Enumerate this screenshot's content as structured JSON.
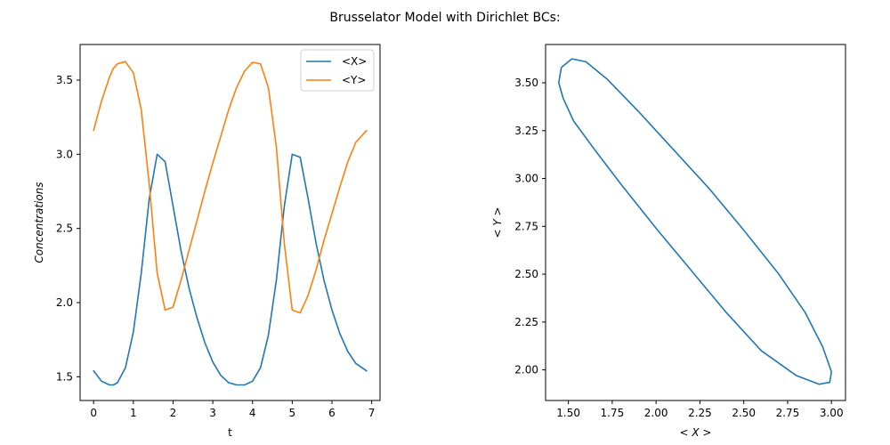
{
  "figure": {
    "suptitle": "Brusselator Model with Dirichlet BCs:"
  },
  "chart_data": [
    {
      "type": "line",
      "xlabel": "t",
      "ylabel": "Concentrations",
      "xlim": [
        -0.34,
        7.21
      ],
      "ylim": [
        1.34,
        3.74
      ],
      "xticks": [
        0,
        1,
        2,
        3,
        4,
        5,
        6,
        7
      ],
      "xtick_labels": [
        "0",
        "1",
        "2",
        "3",
        "4",
        "5",
        "6",
        "7"
      ],
      "yticks": [
        1.5,
        2.0,
        2.5,
        3.0,
        3.5
      ],
      "ytick_labels": [
        "1.5",
        "2.0",
        "2.5",
        "3.0",
        "3.5"
      ],
      "grid": false,
      "legend": "top-right",
      "colors": [
        "#1f77b4",
        "#ff7f0e"
      ],
      "x": [
        0.0,
        0.2,
        0.4,
        0.5,
        0.6,
        0.8,
        1.0,
        1.2,
        1.4,
        1.6,
        1.8,
        2.0,
        2.2,
        2.4,
        2.6,
        2.8,
        3.0,
        3.2,
        3.4,
        3.6,
        3.8,
        4.0,
        4.2,
        4.4,
        4.6,
        4.8,
        5.0,
        5.2,
        5.4,
        5.6,
        5.8,
        6.0,
        6.2,
        6.4,
        6.6,
        6.87
      ],
      "series": [
        {
          "name": "<X>",
          "values": [
            1.54,
            1.47,
            1.445,
            1.445,
            1.46,
            1.56,
            1.8,
            2.2,
            2.7,
            3.0,
            2.95,
            2.65,
            2.35,
            2.1,
            1.9,
            1.73,
            1.6,
            1.51,
            1.46,
            1.445,
            1.445,
            1.47,
            1.56,
            1.78,
            2.15,
            2.65,
            3.0,
            2.98,
            2.7,
            2.4,
            2.15,
            1.95,
            1.79,
            1.67,
            1.59,
            1.54
          ]
        },
        {
          "name": "<Y>",
          "values": [
            3.16,
            3.36,
            3.52,
            3.58,
            3.61,
            3.625,
            3.55,
            3.3,
            2.8,
            2.2,
            1.95,
            1.97,
            2.15,
            2.35,
            2.55,
            2.75,
            2.94,
            3.12,
            3.3,
            3.45,
            3.56,
            3.62,
            3.61,
            3.45,
            3.05,
            2.4,
            1.95,
            1.93,
            2.05,
            2.22,
            2.42,
            2.6,
            2.78,
            2.95,
            3.08,
            3.16
          ]
        }
      ]
    },
    {
      "type": "line",
      "xlabel": "< X >",
      "ylabel": "< Y >",
      "xlim": [
        1.37,
        3.08
      ],
      "ylim": [
        1.84,
        3.7
      ],
      "xticks": [
        1.5,
        1.75,
        2.0,
        2.25,
        2.5,
        2.75,
        3.0
      ],
      "xtick_labels": [
        "1.50",
        "1.75",
        "2.00",
        "2.25",
        "2.50",
        "2.75",
        "3.00"
      ],
      "yticks": [
        2.0,
        2.25,
        2.5,
        2.75,
        3.0,
        3.25,
        3.5
      ],
      "ytick_labels": [
        "2.00",
        "2.25",
        "2.50",
        "2.75",
        "3.00",
        "3.25",
        "3.50"
      ],
      "grid": false,
      "colors": [
        "#1f77b4"
      ],
      "series": [
        {
          "x": [
            1.445,
            1.46,
            1.52,
            1.6,
            1.72,
            1.9,
            2.1,
            2.3,
            2.5,
            2.7,
            2.85,
            2.95,
            3.0,
            2.99,
            2.93,
            2.8,
            2.6,
            2.4,
            2.2,
            2.0,
            1.8,
            1.65,
            1.53,
            1.47,
            1.445
          ],
          "y": [
            3.5,
            3.58,
            3.625,
            3.61,
            3.52,
            3.35,
            3.15,
            2.95,
            2.73,
            2.5,
            2.3,
            2.12,
            1.99,
            1.935,
            1.925,
            1.97,
            2.1,
            2.3,
            2.52,
            2.74,
            2.97,
            3.15,
            3.3,
            3.42,
            3.5
          ]
        }
      ]
    }
  ]
}
